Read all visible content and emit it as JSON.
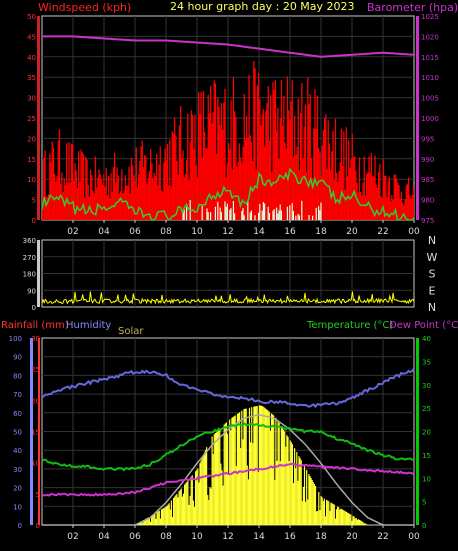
{
  "header": {
    "windspeed_label": "Windspeed (kph)",
    "title": "24 hour graph day : 20 May 2023",
    "barometer_label": "Barometer (hpa)"
  },
  "bottom_header": {
    "rainfall_label": "Rainfall (mm)",
    "humidity_label": "Humidity",
    "solar_label": "Solar",
    "temperature_label": "Temperature (°C)",
    "dewpoint_label": "Dew Point (°C)"
  },
  "colors": {
    "wind_gust": "#ff0000",
    "wind_avg": "#33cc33",
    "calm": "#e0ffe0",
    "barometer": "#cc33cc",
    "direction": "#ffff00",
    "humidity": "#6666dd",
    "temperature": "#11bb11",
    "dewpoint": "#cc33cc",
    "solar": "#ffff33",
    "solar_max": "#aaaaaa",
    "rain_axis": "#ff3333",
    "hum_axis": "#8888ff",
    "temp_axis": "#00cc00",
    "header_text": "#ffff66",
    "solar_label": "#c8b060"
  },
  "chart_data": [
    {
      "type": "area",
      "name": "wind-barometer",
      "x_ticks": [
        "02",
        "04",
        "06",
        "08",
        "10",
        "12",
        "14",
        "16",
        "18",
        "20",
        "22",
        "00"
      ],
      "y_left": {
        "label": "Windspeed (kph)",
        "ticks": [
          "0",
          "5",
          "10",
          "15",
          "20",
          "25",
          "30",
          "35",
          "40",
          "45",
          "50"
        ],
        "ylim": [
          0,
          50
        ]
      },
      "y_right": {
        "label": "Barometer (hpa)",
        "ticks": [
          "975",
          "980",
          "985",
          "990",
          "995",
          "1000",
          "1005",
          "1010",
          "1015",
          "1020",
          "1025"
        ],
        "ylim": [
          975,
          1025
        ]
      },
      "series": [
        {
          "name": "gust",
          "hours": [
            0,
            1,
            2,
            3,
            4,
            5,
            6,
            7,
            8,
            9,
            10,
            11,
            12,
            13,
            14,
            15,
            16,
            17,
            18,
            19,
            20,
            21,
            22,
            23,
            24
          ],
          "values": [
            14,
            19,
            16,
            13,
            13,
            15,
            16,
            17,
            20,
            24,
            28,
            30,
            30,
            32,
            33,
            31,
            31,
            30,
            28,
            22,
            18,
            16,
            14,
            10,
            8
          ]
        },
        {
          "name": "average",
          "hours": [
            0,
            1,
            2,
            3,
            4,
            5,
            6,
            7,
            8,
            9,
            10,
            11,
            12,
            13,
            14,
            15,
            16,
            17,
            18,
            19,
            20,
            21,
            22,
            23,
            24
          ],
          "values": [
            4,
            5,
            3,
            2,
            3,
            4,
            2,
            1,
            1,
            2,
            3,
            6,
            8,
            4,
            10,
            9,
            11,
            10,
            9,
            5,
            6,
            3,
            2,
            1,
            0
          ]
        },
        {
          "name": "barometer",
          "hours": [
            0,
            2,
            4,
            6,
            8,
            10,
            12,
            14,
            16,
            18,
            20,
            22,
            24
          ],
          "values": [
            1020,
            1020,
            1019.5,
            1019,
            1019,
            1018.5,
            1018,
            1017,
            1016,
            1015,
            1015.5,
            1016,
            1015.5
          ]
        }
      ]
    },
    {
      "type": "line",
      "name": "wind-direction",
      "x_ticks": [
        "02",
        "04",
        "06",
        "08",
        "10",
        "12",
        "14",
        "16",
        "18",
        "20",
        "22",
        "00"
      ],
      "y_left_ticks": [
        "360",
        "270",
        "180",
        "90",
        "0"
      ],
      "y_right_ticks": [
        "N",
        "W",
        "S",
        "E",
        "N"
      ],
      "ylim": [
        0,
        360
      ],
      "series": [
        {
          "name": "direction",
          "hours": [
            0,
            6,
            12,
            18,
            24
          ],
          "values": [
            30,
            32,
            32,
            32,
            32
          ]
        }
      ]
    },
    {
      "type": "line",
      "name": "rain-humidity-temperature",
      "x_ticks": [
        "02",
        "04",
        "06",
        "08",
        "10",
        "12",
        "14",
        "16",
        "18",
        "20",
        "22",
        "00"
      ],
      "y_humidity": {
        "ticks": [
          "0",
          "10",
          "20",
          "30",
          "40",
          "50",
          "60",
          "70",
          "80",
          "90",
          "100"
        ],
        "ylim": [
          0,
          100
        ]
      },
      "y_rain": {
        "ticks": [
          "0",
          "5",
          "10",
          "15",
          "20",
          "25",
          "30"
        ],
        "ylim": [
          0,
          30
        ]
      },
      "y_temp": {
        "ticks": [
          "0",
          "5",
          "10",
          "15",
          "20",
          "25",
          "30",
          "35",
          "40"
        ],
        "ylim": [
          0,
          40
        ]
      },
      "series": [
        {
          "name": "humidity",
          "hours": [
            0,
            1,
            2,
            3,
            4,
            5,
            6,
            7,
            8,
            9,
            10,
            11,
            12,
            13,
            14,
            15,
            16,
            17,
            18,
            19,
            20,
            21,
            22,
            23,
            24
          ],
          "values": [
            69,
            72,
            74,
            76,
            78,
            80,
            82,
            82,
            80,
            75,
            72,
            70,
            68,
            68,
            66,
            66,
            65,
            64,
            64,
            65,
            68,
            72,
            76,
            80,
            83
          ]
        },
        {
          "name": "temperature",
          "hours": [
            0,
            1,
            2,
            3,
            4,
            5,
            6,
            7,
            8,
            9,
            10,
            11,
            12,
            13,
            14,
            15,
            16,
            17,
            18,
            19,
            20,
            21,
            22,
            23,
            24
          ],
          "values": [
            14,
            13,
            12.5,
            12.5,
            12,
            12,
            12,
            13,
            15,
            17,
            19,
            20,
            21,
            21.5,
            21.5,
            21,
            20.5,
            20,
            20,
            18.5,
            17.5,
            16,
            15,
            14,
            14
          ]
        },
        {
          "name": "dewpoint",
          "hours": [
            0,
            2,
            4,
            6,
            8,
            10,
            12,
            14,
            16,
            18,
            20,
            22,
            24
          ],
          "values": [
            6.5,
            6.5,
            6.5,
            7,
            9,
            10,
            11,
            12,
            13,
            12.5,
            12,
            11.5,
            11
          ]
        },
        {
          "name": "solar",
          "hours": [
            6,
            7,
            8,
            9,
            10,
            11,
            12,
            13,
            14,
            15,
            16,
            17,
            18,
            19,
            20,
            21
          ],
          "values": [
            0,
            5,
            10,
            20,
            30,
            50,
            60,
            62,
            65,
            58,
            45,
            30,
            15,
            10,
            5,
            0
          ]
        },
        {
          "name": "solar_max",
          "hours": [
            6,
            7,
            8,
            9,
            10,
            11,
            12,
            13,
            14,
            15,
            16,
            17,
            18,
            19,
            20,
            21,
            22
          ],
          "values": [
            0,
            4,
            12,
            22,
            33,
            43,
            51,
            57,
            59,
            57,
            51,
            43,
            33,
            22,
            12,
            4,
            0
          ]
        }
      ]
    }
  ]
}
